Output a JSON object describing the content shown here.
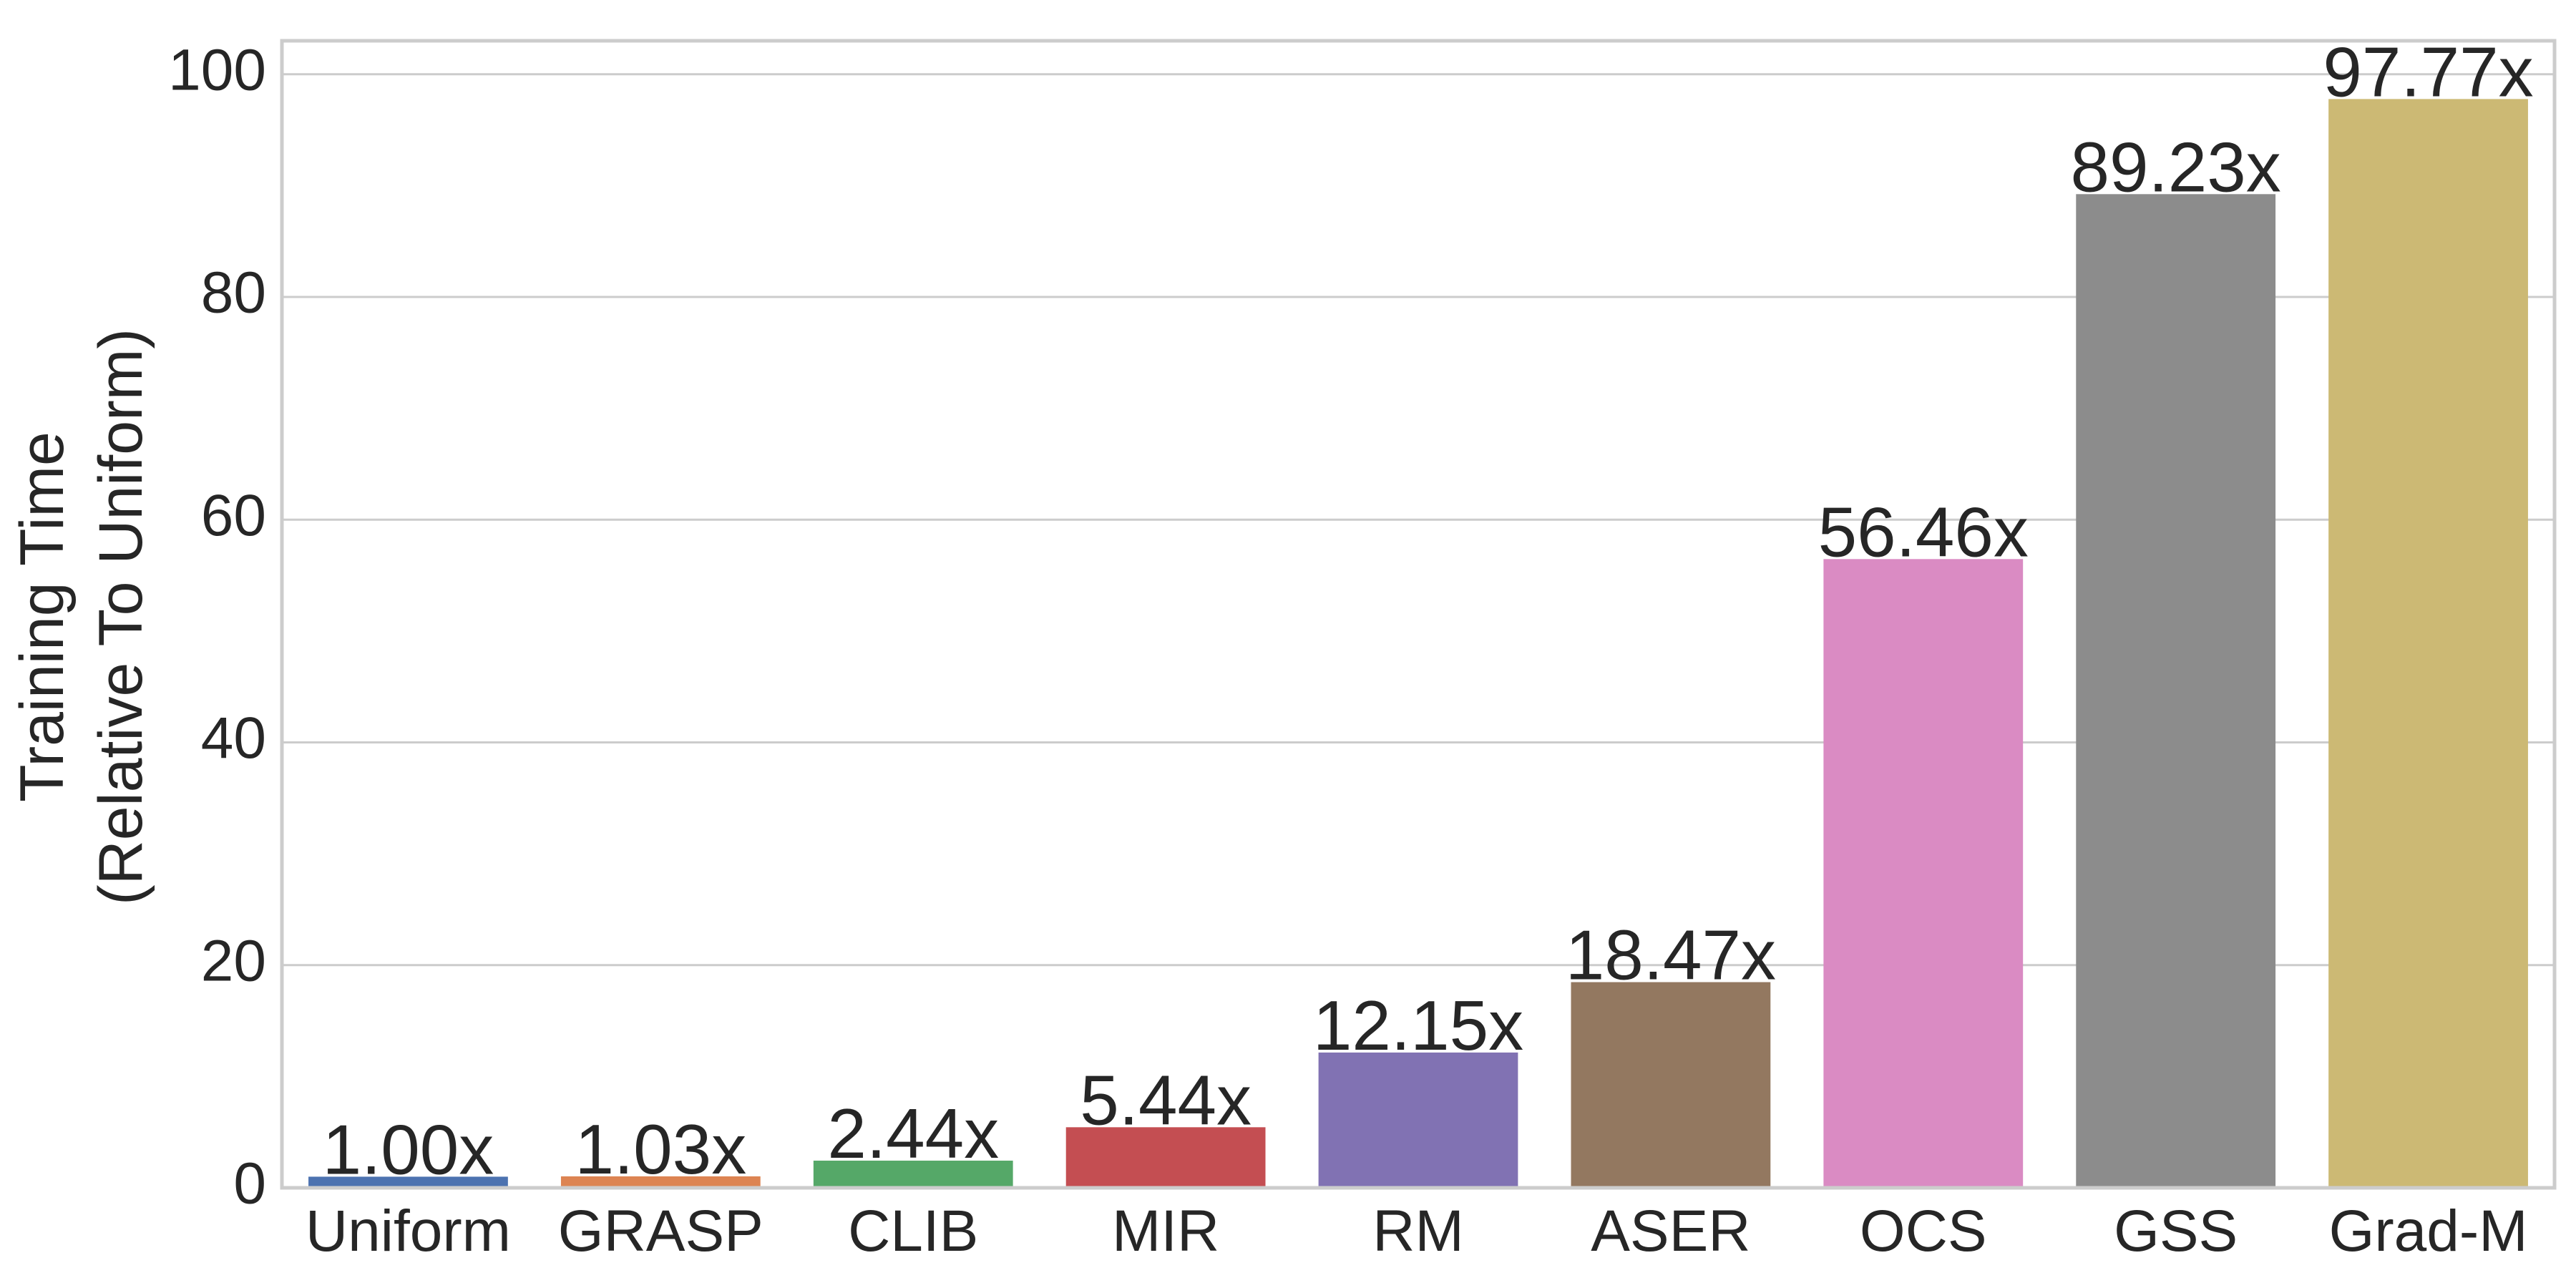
{
  "chart_data": {
    "type": "bar",
    "title": "",
    "xlabel": "",
    "ylabel_lines": [
      "Training Time",
      "(Relative To Uniform)"
    ],
    "ylim": [
      0,
      103
    ],
    "yticks": [
      0,
      20,
      40,
      60,
      80,
      100
    ],
    "grid": true,
    "categories": [
      "Uniform",
      "GRASP",
      "CLIB",
      "MIR",
      "RM",
      "ASER",
      "OCS",
      "GSS",
      "Grad-M"
    ],
    "values": [
      1.0,
      1.03,
      2.44,
      5.44,
      12.15,
      18.47,
      56.46,
      89.23,
      97.77
    ],
    "data_labels": [
      "1.00x",
      "1.03x",
      "2.44x",
      "5.44x",
      "12.15x",
      "18.47x",
      "56.46x",
      "89.23x",
      "97.77x"
    ],
    "colors": [
      "#4c72b0",
      "#dd8452",
      "#55a868",
      "#c44e52",
      "#8172b3",
      "#937860",
      "#da8bc3",
      "#8c8c8c",
      "#ccb974"
    ]
  }
}
